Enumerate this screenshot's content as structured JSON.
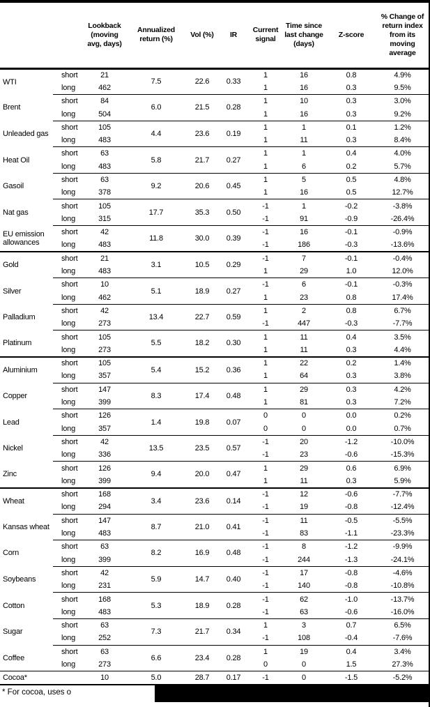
{
  "header": {
    "columns": [
      "",
      "",
      "Lookback\n(moving\navg, days)",
      "Annualized\nreturn (%)",
      "Vol (%)",
      "IR",
      "Current\nsignal",
      "Time since\nlast change\n(days)",
      "Z-score",
      "% Change of\nreturn index\nfrom its\nmoving\naverage"
    ]
  },
  "table": {
    "sections": [
      {
        "name": "energy",
        "groups": [
          {
            "name": "WTI",
            "annualized_return": "7.5",
            "vol": "22.6",
            "ir": "0.33",
            "rows": [
              {
                "period": "short",
                "lookback": "21",
                "signal": "1",
                "time_since": "16",
                "z_score": "0.8",
                "pct_change": "4.9%"
              },
              {
                "period": "long",
                "lookback": "462",
                "signal": "1",
                "time_since": "16",
                "z_score": "0.3",
                "pct_change": "9.5%"
              }
            ]
          },
          {
            "name": "Brent",
            "annualized_return": "6.0",
            "vol": "21.5",
            "ir": "0.28",
            "rows": [
              {
                "period": "short",
                "lookback": "84",
                "signal": "1",
                "time_since": "10",
                "z_score": "0.3",
                "pct_change": "3.0%"
              },
              {
                "period": "long",
                "lookback": "504",
                "signal": "1",
                "time_since": "16",
                "z_score": "0.3",
                "pct_change": "9.2%"
              }
            ]
          },
          {
            "name": "Unleaded gas",
            "annualized_return": "4.4",
            "vol": "23.6",
            "ir": "0.19",
            "rows": [
              {
                "period": "short",
                "lookback": "105",
                "signal": "1",
                "time_since": "1",
                "z_score": "0.1",
                "pct_change": "1.2%"
              },
              {
                "period": "long",
                "lookback": "483",
                "signal": "1",
                "time_since": "11",
                "z_score": "0.3",
                "pct_change": "8.4%"
              }
            ]
          },
          {
            "name": "Heat Oil",
            "annualized_return": "5.8",
            "vol": "21.7",
            "ir": "0.27",
            "rows": [
              {
                "period": "short",
                "lookback": "63",
                "signal": "1",
                "time_since": "1",
                "z_score": "0.4",
                "pct_change": "4.0%"
              },
              {
                "period": "long",
                "lookback": "483",
                "signal": "1",
                "time_since": "6",
                "z_score": "0.2",
                "pct_change": "5.7%"
              }
            ]
          },
          {
            "name": "Gasoil",
            "annualized_return": "9.2",
            "vol": "20.6",
            "ir": "0.45",
            "rows": [
              {
                "period": "short",
                "lookback": "63",
                "signal": "1",
                "time_since": "5",
                "z_score": "0.5",
                "pct_change": "4.8%"
              },
              {
                "period": "long",
                "lookback": "378",
                "signal": "1",
                "time_since": "16",
                "z_score": "0.5",
                "pct_change": "12.7%"
              }
            ]
          },
          {
            "name": "Nat gas",
            "annualized_return": "17.7",
            "vol": "35.3",
            "ir": "0.50",
            "rows": [
              {
                "period": "short",
                "lookback": "105",
                "signal": "-1",
                "time_since": "1",
                "z_score": "-0.2",
                "pct_change": "-3.8%"
              },
              {
                "period": "long",
                "lookback": "315",
                "signal": "-1",
                "time_since": "91",
                "z_score": "-0.9",
                "pct_change": "-26.4%"
              }
            ]
          },
          {
            "name": "EU emission allowances",
            "annualized_return": "11.8",
            "vol": "30.0",
            "ir": "0.39",
            "rows": [
              {
                "period": "short",
                "lookback": "42",
                "signal": "-1",
                "time_since": "16",
                "z_score": "-0.1",
                "pct_change": "-0.9%"
              },
              {
                "period": "long",
                "lookback": "483",
                "signal": "-1",
                "time_since": "186",
                "z_score": "-0.3",
                "pct_change": "-13.6%"
              }
            ]
          }
        ]
      },
      {
        "name": "precious-metals",
        "groups": [
          {
            "name": "Gold",
            "annualized_return": "3.1",
            "vol": "10.5",
            "ir": "0.29",
            "rows": [
              {
                "period": "short",
                "lookback": "21",
                "signal": "-1",
                "time_since": "7",
                "z_score": "-0.1",
                "pct_change": "-0.4%"
              },
              {
                "period": "long",
                "lookback": "483",
                "signal": "1",
                "time_since": "29",
                "z_score": "1.0",
                "pct_change": "12.0%"
              }
            ]
          },
          {
            "name": "Silver",
            "annualized_return": "5.1",
            "vol": "18.9",
            "ir": "0.27",
            "rows": [
              {
                "period": "short",
                "lookback": "10",
                "signal": "-1",
                "time_since": "6",
                "z_score": "-0.1",
                "pct_change": "-0.3%"
              },
              {
                "period": "long",
                "lookback": "462",
                "signal": "1",
                "time_since": "23",
                "z_score": "0.8",
                "pct_change": "17.4%"
              }
            ]
          },
          {
            "name": "Palladium",
            "annualized_return": "13.4",
            "vol": "22.7",
            "ir": "0.59",
            "rows": [
              {
                "period": "short",
                "lookback": "42",
                "signal": "1",
                "time_since": "2",
                "z_score": "0.8",
                "pct_change": "6.7%"
              },
              {
                "period": "long",
                "lookback": "273",
                "signal": "-1",
                "time_since": "447",
                "z_score": "-0.3",
                "pct_change": "-7.7%"
              }
            ]
          },
          {
            "name": "Platinum",
            "annualized_return": "5.5",
            "vol": "18.2",
            "ir": "0.30",
            "rows": [
              {
                "period": "short",
                "lookback": "105",
                "signal": "1",
                "time_since": "11",
                "z_score": "0.4",
                "pct_change": "3.5%"
              },
              {
                "period": "long",
                "lookback": "273",
                "signal": "1",
                "time_since": "11",
                "z_score": "0.3",
                "pct_change": "4.4%"
              }
            ]
          }
        ]
      },
      {
        "name": "base-metals",
        "groups": [
          {
            "name": "Aluminium",
            "annualized_return": "5.4",
            "vol": "15.2",
            "ir": "0.36",
            "rows": [
              {
                "period": "short",
                "lookback": "105",
                "signal": "1",
                "time_since": "22",
                "z_score": "0.2",
                "pct_change": "1.4%"
              },
              {
                "period": "long",
                "lookback": "357",
                "signal": "1",
                "time_since": "64",
                "z_score": "0.3",
                "pct_change": "3.8%"
              }
            ]
          },
          {
            "name": "Copper",
            "annualized_return": "8.3",
            "vol": "17.4",
            "ir": "0.48",
            "rows": [
              {
                "period": "short",
                "lookback": "147",
                "signal": "1",
                "time_since": "29",
                "z_score": "0.3",
                "pct_change": "4.2%"
              },
              {
                "period": "long",
                "lookback": "399",
                "signal": "1",
                "time_since": "81",
                "z_score": "0.3",
                "pct_change": "7.2%"
              }
            ]
          },
          {
            "name": "Lead",
            "annualized_return": "1.4",
            "vol": "19.8",
            "ir": "0.07",
            "rows": [
              {
                "period": "short",
                "lookback": "126",
                "signal": "0",
                "time_since": "0",
                "z_score": "0.0",
                "pct_change": "0.2%"
              },
              {
                "period": "long",
                "lookback": "357",
                "signal": "0",
                "time_since": "0",
                "z_score": "0.0",
                "pct_change": "0.7%"
              }
            ]
          },
          {
            "name": "Nickel",
            "annualized_return": "13.5",
            "vol": "23.5",
            "ir": "0.57",
            "rows": [
              {
                "period": "short",
                "lookback": "42",
                "signal": "-1",
                "time_since": "20",
                "z_score": "-1.2",
                "pct_change": "-10.0%"
              },
              {
                "period": "long",
                "lookback": "336",
                "signal": "-1",
                "time_since": "23",
                "z_score": "-0.6",
                "pct_change": "-15.3%"
              }
            ]
          },
          {
            "name": "Zinc",
            "annualized_return": "9.4",
            "vol": "20.0",
            "ir": "0.47",
            "rows": [
              {
                "period": "short",
                "lookback": "126",
                "signal": "1",
                "time_since": "29",
                "z_score": "0.6",
                "pct_change": "6.9%"
              },
              {
                "period": "long",
                "lookback": "399",
                "signal": "1",
                "time_since": "11",
                "z_score": "0.3",
                "pct_change": "5.9%"
              }
            ]
          }
        ]
      },
      {
        "name": "agriculture",
        "groups": [
          {
            "name": "Wheat",
            "annualized_return": "3.4",
            "vol": "23.6",
            "ir": "0.14",
            "rows": [
              {
                "period": "short",
                "lookback": "168",
                "signal": "-1",
                "time_since": "12",
                "z_score": "-0.6",
                "pct_change": "-7.7%"
              },
              {
                "period": "long",
                "lookback": "294",
                "signal": "-1",
                "time_since": "19",
                "z_score": "-0.8",
                "pct_change": "-12.4%"
              }
            ]
          },
          {
            "name": "Kansas wheat",
            "annualized_return": "8.7",
            "vol": "21.0",
            "ir": "0.41",
            "rows": [
              {
                "period": "short",
                "lookback": "147",
                "signal": "-1",
                "time_since": "11",
                "z_score": "-0.5",
                "pct_change": "-5.5%"
              },
              {
                "period": "long",
                "lookback": "483",
                "signal": "-1",
                "time_since": "83",
                "z_score": "-1.1",
                "pct_change": "-23.3%"
              }
            ]
          },
          {
            "name": "Corn",
            "annualized_return": "8.2",
            "vol": "16.9",
            "ir": "0.48",
            "rows": [
              {
                "period": "short",
                "lookback": "63",
                "signal": "-1",
                "time_since": "8",
                "z_score": "-1.2",
                "pct_change": "-9.9%"
              },
              {
                "period": "long",
                "lookback": "399",
                "signal": "-1",
                "time_since": "244",
                "z_score": "-1.3",
                "pct_change": "-24.1%"
              }
            ]
          },
          {
            "name": "Soybeans",
            "annualized_return": "5.9",
            "vol": "14.7",
            "ir": "0.40",
            "rows": [
              {
                "period": "short",
                "lookback": "42",
                "signal": "-1",
                "time_since": "17",
                "z_score": "-0.8",
                "pct_change": "-4.6%"
              },
              {
                "period": "long",
                "lookback": "231",
                "signal": "-1",
                "time_since": "140",
                "z_score": "-0.8",
                "pct_change": "-10.8%"
              }
            ]
          },
          {
            "name": "Cotton",
            "annualized_return": "5.3",
            "vol": "18.9",
            "ir": "0.28",
            "rows": [
              {
                "period": "short",
                "lookback": "168",
                "signal": "-1",
                "time_since": "62",
                "z_score": "-1.0",
                "pct_change": "-13.7%"
              },
              {
                "period": "long",
                "lookback": "483",
                "signal": "-1",
                "time_since": "63",
                "z_score": "-0.6",
                "pct_change": "-16.0%"
              }
            ]
          },
          {
            "name": "Sugar",
            "annualized_return": "7.3",
            "vol": "21.7",
            "ir": "0.34",
            "rows": [
              {
                "period": "short",
                "lookback": "63",
                "signal": "1",
                "time_since": "3",
                "z_score": "0.7",
                "pct_change": "6.5%"
              },
              {
                "period": "long",
                "lookback": "252",
                "signal": "-1",
                "time_since": "108",
                "z_score": "-0.4",
                "pct_change": "-7.6%"
              }
            ]
          },
          {
            "name": "Coffee",
            "annualized_return": "6.6",
            "vol": "23.4",
            "ir": "0.28",
            "rows": [
              {
                "period": "short",
                "lookback": "63",
                "signal": "1",
                "time_since": "19",
                "z_score": "0.4",
                "pct_change": "3.4%"
              },
              {
                "period": "long",
                "lookback": "273",
                "signal": "0",
                "time_since": "0",
                "z_score": "1.5",
                "pct_change": "27.3%"
              }
            ]
          },
          {
            "name": "Cocoa*",
            "annualized_return": "5.0",
            "vol": "28.7",
            "ir": "0.17",
            "rows": [
              {
                "period": "",
                "lookback": "10",
                "signal": "-1",
                "time_since": "0",
                "z_score": "-1.5",
                "pct_change": "-5.2%"
              }
            ]
          }
        ]
      }
    ]
  },
  "footnote": {
    "text": "* For cocoa, uses o"
  },
  "colors": {
    "background": "#ffffff",
    "text": "#000000",
    "border": "#000000",
    "redaction": "#000000"
  }
}
